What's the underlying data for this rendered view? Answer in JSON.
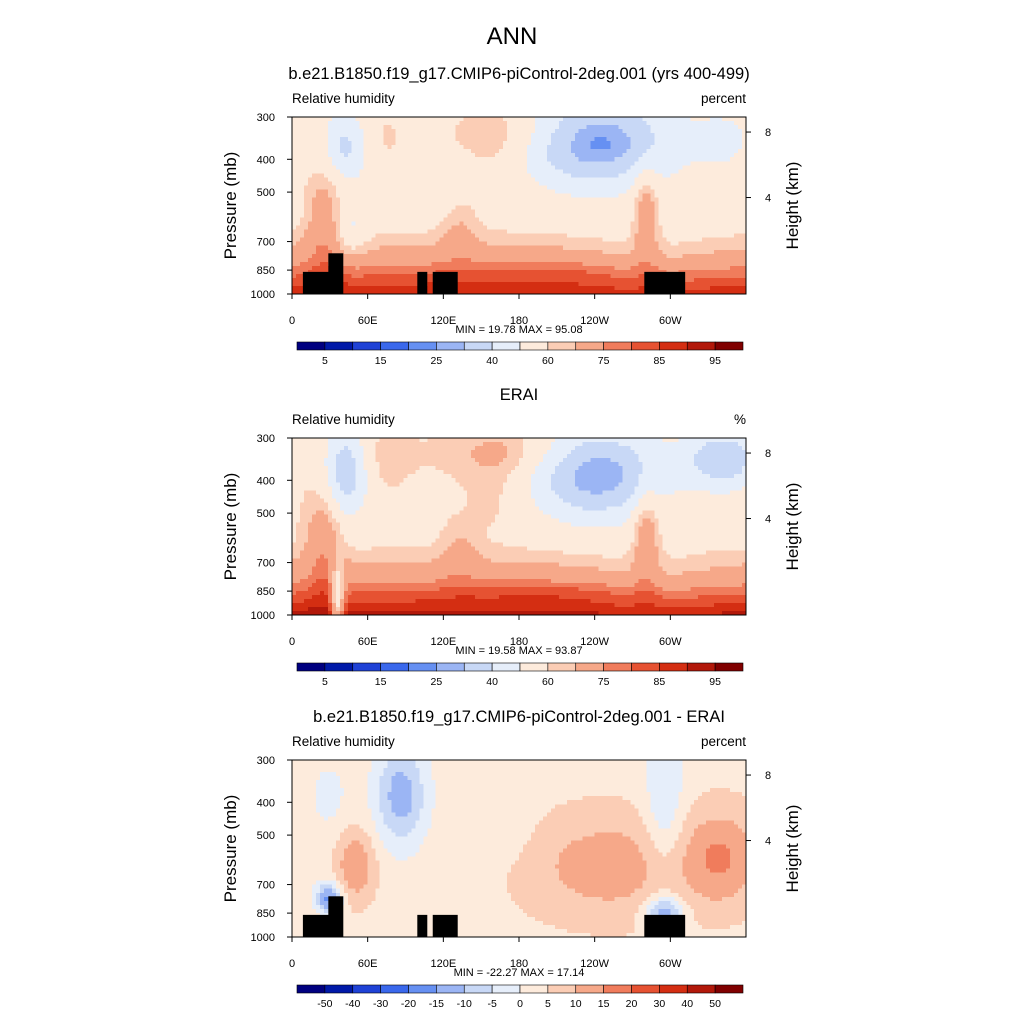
{
  "figure": {
    "main_title": "ANN"
  },
  "chart_data": [
    {
      "type": "heatmap",
      "title": "b.e21.B1850.f19_g17.CMIP6-piControl-2deg.001 (yrs 400-499)",
      "left_label": "Relative humidity",
      "right_label": "percent",
      "ylabel": "Pressure (mb)",
      "ylabel_right": "Height (km)",
      "x_ticks": [
        "0",
        "60E",
        "120E",
        "180",
        "120W",
        "60W"
      ],
      "y_ticks": [
        "300",
        "400",
        "500",
        "700",
        "850",
        "1000"
      ],
      "y2_ticks": [
        "8",
        "4"
      ],
      "stats": "MIN =  19.78  MAX =  95.08",
      "colorbar_labels": [
        "5",
        "15",
        "25",
        "40",
        "60",
        "75",
        "85",
        "95"
      ],
      "show_topography": true,
      "field": "model",
      "min": 19.78,
      "max": 95.08
    },
    {
      "type": "heatmap",
      "title": "ERAI",
      "left_label": "Relative humidity",
      "right_label": "%",
      "ylabel": "Pressure (mb)",
      "ylabel_right": "Height (km)",
      "x_ticks": [
        "0",
        "60E",
        "120E",
        "180",
        "120W",
        "60W"
      ],
      "y_ticks": [
        "300",
        "400",
        "500",
        "700",
        "850",
        "1000"
      ],
      "y2_ticks": [
        "8",
        "4"
      ],
      "stats": "MIN =  19.58  MAX =  93.87",
      "colorbar_labels": [
        "5",
        "15",
        "25",
        "40",
        "60",
        "75",
        "85",
        "95"
      ],
      "show_topography": false,
      "field": "obs",
      "min": 19.58,
      "max": 93.87
    },
    {
      "type": "heatmap",
      "title": "b.e21.B1850.f19_g17.CMIP6-piControl-2deg.001 - ERAI",
      "left_label": "Relative humidity",
      "right_label": "percent",
      "ylabel": "Pressure (mb)",
      "ylabel_right": "Height (km)",
      "x_ticks": [
        "0",
        "60E",
        "120E",
        "180",
        "120W",
        "60W"
      ],
      "y_ticks": [
        "300",
        "400",
        "500",
        "700",
        "850",
        "1000"
      ],
      "y2_ticks": [
        "8",
        "4"
      ],
      "stats": "MIN = -22.27  MAX =  17.14",
      "colorbar_labels": [
        "-50",
        "-40",
        "-30",
        "-20",
        "-15",
        "-10",
        "-5",
        "0",
        "5",
        "10",
        "15",
        "20",
        "30",
        "40",
        "50"
      ],
      "show_topography": true,
      "field": "diff",
      "min": -22.27,
      "max": 17.14
    }
  ],
  "colors": {
    "abs_levels": [
      "#000080",
      "#0019a8",
      "#1f42d6",
      "#3a68ec",
      "#6690f2",
      "#9bb5f4",
      "#c8d8f6",
      "#e6eefa",
      "#fdebdc",
      "#fbcdb5",
      "#f6a889",
      "#f07c5c",
      "#e65232",
      "#d42e12",
      "#b2180a",
      "#800000"
    ],
    "diff_levels": [
      "#000080",
      "#0019a8",
      "#1f42d6",
      "#3a68ec",
      "#6690f2",
      "#9bb5f4",
      "#c8d8f6",
      "#e6eefa",
      "#fdebdc",
      "#fbcdb5",
      "#f6a889",
      "#f07c5c",
      "#e65232",
      "#d42e12",
      "#b2180a",
      "#800000"
    ],
    "topography": "#000000"
  }
}
